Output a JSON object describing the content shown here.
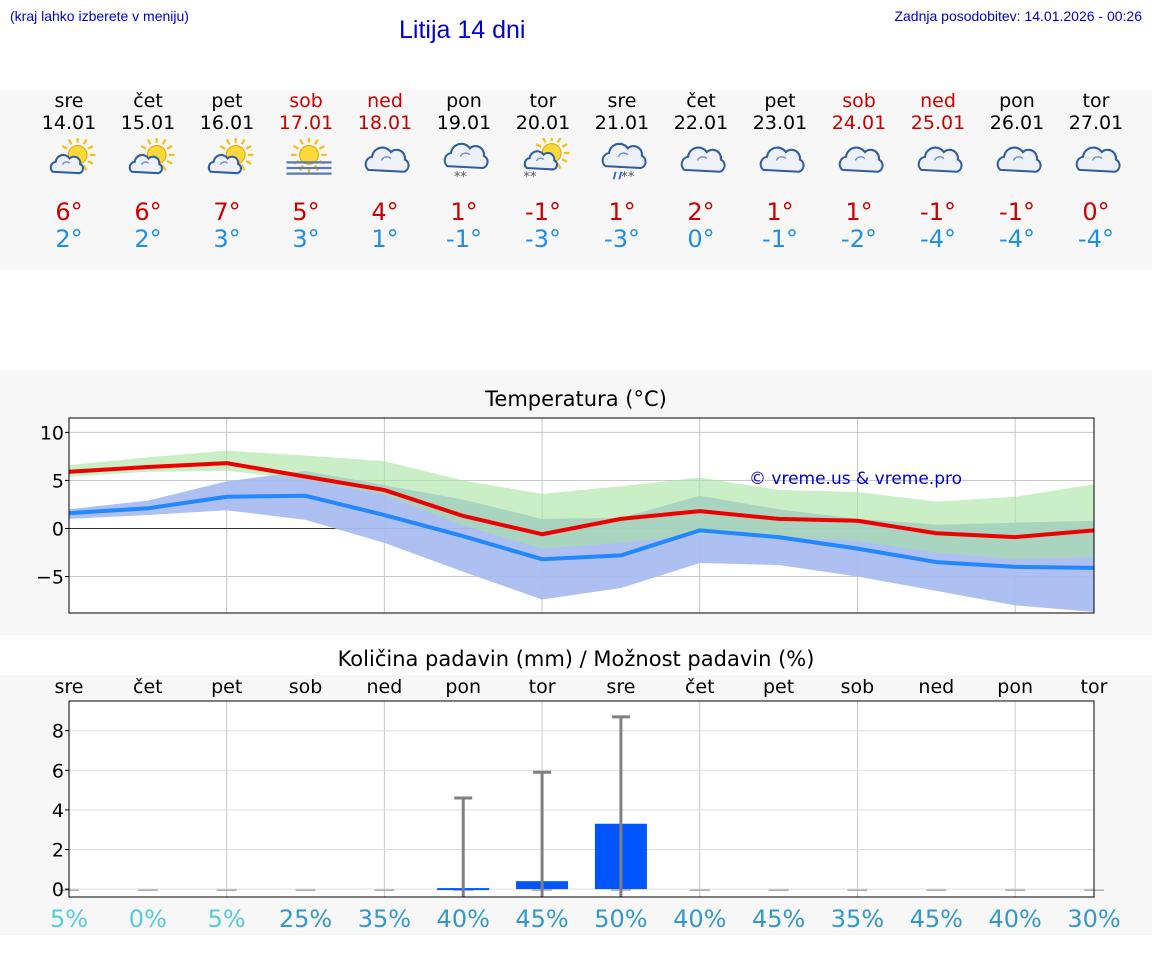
{
  "header": {
    "hint": "(kraj lahko izberete v meniju)",
    "title": "Litija 14 dni",
    "updated": "Zadnja posodobitev: 14.01.2026 - 00:26"
  },
  "days": [
    {
      "name": "sre",
      "date": "14.01",
      "weekend": false,
      "icon": "sun-cloud-icon",
      "max": "6°",
      "min": "2°"
    },
    {
      "name": "čet",
      "date": "15.01",
      "weekend": false,
      "icon": "sun-cloud-icon",
      "max": "6°",
      "min": "2°"
    },
    {
      "name": "pet",
      "date": "16.01",
      "weekend": false,
      "icon": "sun-cloud-icon",
      "max": "7°",
      "min": "3°"
    },
    {
      "name": "sob",
      "date": "17.01",
      "weekend": true,
      "icon": "sun-fog-icon",
      "max": "5°",
      "min": "3°"
    },
    {
      "name": "ned",
      "date": "18.01",
      "weekend": true,
      "icon": "cloud-icon",
      "max": "4°",
      "min": "1°"
    },
    {
      "name": "pon",
      "date": "19.01",
      "weekend": false,
      "icon": "cloud-snow-icon",
      "max": "1°",
      "min": "-1°"
    },
    {
      "name": "tor",
      "date": "20.01",
      "weekend": false,
      "icon": "sun-cloud-snow-icon",
      "max": "-1°",
      "min": "-3°"
    },
    {
      "name": "sre",
      "date": "21.01",
      "weekend": false,
      "icon": "cloud-sleet-icon",
      "max": "1°",
      "min": "-3°"
    },
    {
      "name": "čet",
      "date": "22.01",
      "weekend": false,
      "icon": "cloud-icon",
      "max": "2°",
      "min": "0°"
    },
    {
      "name": "pet",
      "date": "23.01",
      "weekend": false,
      "icon": "cloud-icon",
      "max": "1°",
      "min": "-1°"
    },
    {
      "name": "sob",
      "date": "24.01",
      "weekend": true,
      "icon": "cloud-icon",
      "max": "1°",
      "min": "-2°"
    },
    {
      "name": "ned",
      "date": "25.01",
      "weekend": true,
      "icon": "cloud-icon",
      "max": "-1°",
      "min": "-4°"
    },
    {
      "name": "pon",
      "date": "26.01",
      "weekend": false,
      "icon": "cloud-icon",
      "max": "-1°",
      "min": "-4°"
    },
    {
      "name": "tor",
      "date": "27.01",
      "weekend": false,
      "icon": "cloud-icon",
      "max": "0°",
      "min": "-4°"
    }
  ],
  "colors": {
    "max": "#ee0000",
    "min": "#2288ff",
    "max_band": "#a6e3a0",
    "min_band": "#a9bdf0",
    "overlap_band": "#7fc6a8",
    "bar": "#0055ff",
    "whisker": "#808080",
    "prob_low": "#55ccdd",
    "prob_high": "#3399cc",
    "watermark": "#0000cc"
  },
  "chart_data": [
    {
      "type": "line",
      "title": "Temperatura (°C)",
      "watermark": "© vreme.us & vreme.pro",
      "x": [
        0,
        1,
        2,
        3,
        4,
        5,
        6,
        7,
        8,
        9,
        10,
        11,
        12,
        13
      ],
      "ylim": [
        -8.8,
        11.5
      ],
      "yticks": [
        10,
        5,
        0,
        -5
      ],
      "ytick_labels": [
        "10",
        "5",
        "0",
        "−5"
      ],
      "series": [
        {
          "name": "max",
          "values": [
            5.9,
            6.4,
            6.8,
            5.4,
            4.0,
            1.3,
            -0.6,
            1.0,
            1.8,
            1.0,
            0.8,
            -0.5,
            -0.9,
            -0.2
          ]
        },
        {
          "name": "min",
          "values": [
            1.6,
            2.1,
            3.3,
            3.4,
            1.4,
            -0.8,
            -3.2,
            -2.8,
            -0.2,
            -0.9,
            -2.1,
            -3.5,
            -4.0,
            -4.1
          ]
        }
      ],
      "bands": [
        {
          "name": "max_range",
          "low": [
            5.4,
            5.9,
            6.0,
            5.1,
            3.5,
            0.3,
            -2.1,
            -1.5,
            -0.6,
            -0.9,
            -1.3,
            -2.5,
            -3.2,
            -3.0
          ],
          "high": [
            6.6,
            7.4,
            8.1,
            7.6,
            7.0,
            5.0,
            3.6,
            4.4,
            5.3,
            4.0,
            3.8,
            2.8,
            3.3,
            4.6
          ]
        },
        {
          "name": "min_range",
          "low": [
            1.0,
            1.4,
            1.9,
            0.9,
            -1.5,
            -4.5,
            -7.4,
            -6.2,
            -3.6,
            -3.8,
            -5.0,
            -6.5,
            -8.0,
            -8.7
          ],
          "high": [
            2.0,
            2.9,
            4.9,
            6.0,
            4.5,
            3.0,
            1.0,
            1.1,
            3.4,
            2.0,
            1.0,
            0.4,
            0.6,
            0.8
          ]
        }
      ],
      "grid": true
    },
    {
      "type": "bar",
      "title": "Količina padavin (mm) / Možnost padavin (%)",
      "categories": [
        "sre",
        "čet",
        "pet",
        "sob",
        "ned",
        "pon",
        "tor",
        "sre",
        "čet",
        "pet",
        "sob",
        "ned",
        "pon",
        "tor"
      ],
      "values": [
        0,
        0,
        0,
        0,
        0,
        0.05,
        0.4,
        3.3,
        0,
        0,
        0,
        0,
        0,
        0
      ],
      "error_high": [
        0,
        0,
        0,
        0,
        0,
        4.6,
        5.9,
        8.7,
        0,
        0,
        0,
        0,
        0,
        0
      ],
      "probability": [
        "5%",
        "0%",
        "5%",
        "25%",
        "35%",
        "40%",
        "45%",
        "50%",
        "40%",
        "45%",
        "35%",
        "45%",
        "40%",
        "30%"
      ],
      "ylim": [
        -0.4,
        9.5
      ],
      "yticks": [
        8,
        6,
        4,
        2,
        0
      ],
      "ytick_labels": [
        "8",
        "6",
        "4",
        "2",
        "0"
      ],
      "grid": true
    }
  ]
}
